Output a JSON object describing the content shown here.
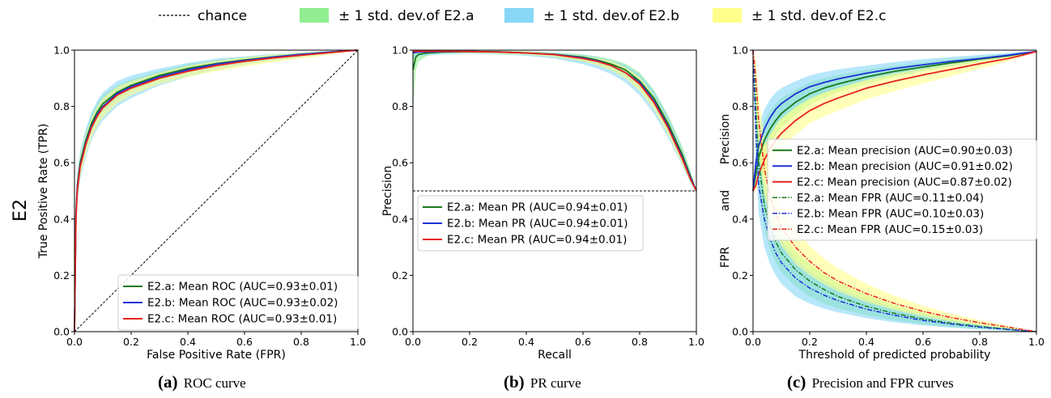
{
  "figure_legend": {
    "chance": "chance",
    "std_a": "± 1 std. dev.of E2.a",
    "std_b": "± 1 std. dev.of E2.b",
    "std_c": "± 1 std. dev.of E2.c"
  },
  "row_label": "E2",
  "colors": {
    "a_line": "#1a7a1a",
    "b_line": "#1f2fd6",
    "c_line": "#e8221e",
    "a_band": "#90ee90",
    "b_band": "#87d7f7",
    "c_band": "#ffff8a",
    "chance": "#000000"
  },
  "captions": {
    "a_letter": "(a)",
    "a_text": "ROC curve",
    "b_letter": "(b)",
    "b_text": "PR curve",
    "c_letter": "(c)",
    "c_text": "Precision and FPR curves"
  },
  "chart_data": [
    {
      "type": "line",
      "xlabel": "False Positive Rate (FPR)",
      "ylabel": "True Positive Rate (TPR)",
      "xlim": [
        0,
        1
      ],
      "ylim": [
        0,
        1
      ],
      "xticks": [
        "0.0",
        "0.2",
        "0.4",
        "0.6",
        "0.8",
        "1.0"
      ],
      "yticks": [
        "0.0",
        "0.2",
        "0.4",
        "0.6",
        "0.8",
        "1.0"
      ],
      "grid": false,
      "legend_position": "bottom-right",
      "legend": [
        "E2.a: Mean ROC (AUC=0.93±0.01)",
        "E2.b: Mean ROC (AUC=0.93±0.02)",
        "E2.c: Mean ROC (AUC=0.93±0.01)"
      ],
      "x": [
        0,
        0.005,
        0.01,
        0.02,
        0.04,
        0.06,
        0.08,
        0.1,
        0.15,
        0.2,
        0.3,
        0.4,
        0.5,
        0.6,
        0.7,
        0.8,
        0.9,
        1.0
      ],
      "series": [
        {
          "values": [
            0,
            0.42,
            0.52,
            0.6,
            0.68,
            0.74,
            0.78,
            0.81,
            0.85,
            0.875,
            0.91,
            0.935,
            0.952,
            0.965,
            0.976,
            0.985,
            0.993,
            1.0
          ]
        },
        {
          "values": [
            0,
            0.41,
            0.51,
            0.59,
            0.67,
            0.73,
            0.77,
            0.8,
            0.845,
            0.87,
            0.905,
            0.93,
            0.95,
            0.963,
            0.975,
            0.985,
            0.993,
            1.0
          ]
        },
        {
          "values": [
            0,
            0.4,
            0.5,
            0.585,
            0.665,
            0.725,
            0.765,
            0.795,
            0.84,
            0.865,
            0.9,
            0.925,
            0.945,
            0.96,
            0.972,
            0.982,
            0.991,
            1.0
          ]
        }
      ],
      "bands": [
        {
          "lower": [
            0,
            0.39,
            0.49,
            0.57,
            0.65,
            0.71,
            0.75,
            0.78,
            0.825,
            0.855,
            0.895,
            0.92,
            0.94,
            0.955,
            0.968,
            0.978,
            0.988,
            1.0
          ],
          "upper": [
            0,
            0.45,
            0.55,
            0.63,
            0.71,
            0.77,
            0.81,
            0.84,
            0.875,
            0.895,
            0.925,
            0.95,
            0.964,
            0.975,
            0.984,
            0.991,
            0.996,
            1.0
          ]
        },
        {
          "lower": [
            0,
            0.36,
            0.46,
            0.54,
            0.62,
            0.68,
            0.72,
            0.75,
            0.8,
            0.83,
            0.875,
            0.905,
            0.93,
            0.948,
            0.962,
            0.975,
            0.986,
            1.0
          ],
          "upper": [
            0,
            0.46,
            0.56,
            0.64,
            0.72,
            0.78,
            0.82,
            0.85,
            0.89,
            0.91,
            0.935,
            0.955,
            0.97,
            0.978,
            0.986,
            0.992,
            0.996,
            1.0
          ]
        },
        {
          "lower": [
            0,
            0.37,
            0.47,
            0.55,
            0.63,
            0.69,
            0.73,
            0.76,
            0.81,
            0.84,
            0.88,
            0.905,
            0.925,
            0.942,
            0.957,
            0.97,
            0.983,
            1.0
          ],
          "upper": [
            0,
            0.43,
            0.53,
            0.62,
            0.7,
            0.76,
            0.8,
            0.83,
            0.87,
            0.89,
            0.92,
            0.945,
            0.962,
            0.974,
            0.984,
            0.991,
            0.996,
            1.0
          ]
        }
      ],
      "reference_line": {
        "x": [
          0,
          1
        ],
        "y": [
          0,
          1
        ]
      }
    },
    {
      "type": "line",
      "xlabel": "Recall",
      "ylabel": "Precision",
      "xlim": [
        0,
        1
      ],
      "ylim": [
        0,
        1
      ],
      "xticks": [
        "0.0",
        "0.2",
        "0.4",
        "0.6",
        "0.8",
        "1.0"
      ],
      "yticks": [
        "0.0",
        "0.2",
        "0.4",
        "0.6",
        "0.8",
        "1.0"
      ],
      "grid": false,
      "legend_position": "center-left",
      "legend": [
        "E2.a: Mean PR (AUC=0.94±0.01)",
        "E2.b: Mean PR (AUC=0.94±0.01)",
        "E2.c: Mean PR (AUC=0.94±0.01)"
      ],
      "x": [
        0,
        0.01,
        0.02,
        0.05,
        0.1,
        0.2,
        0.3,
        0.4,
        0.5,
        0.6,
        0.65,
        0.7,
        0.75,
        0.8,
        0.85,
        0.9,
        0.95,
        0.98,
        1.0
      ],
      "series": [
        {
          "values": [
            0.93,
            0.975,
            0.985,
            0.99,
            0.993,
            0.995,
            0.994,
            0.99,
            0.985,
            0.975,
            0.965,
            0.95,
            0.93,
            0.89,
            0.83,
            0.74,
            0.63,
            0.55,
            0.5
          ]
        },
        {
          "values": [
            0.99,
            0.992,
            0.993,
            0.994,
            0.995,
            0.995,
            0.994,
            0.99,
            0.985,
            0.972,
            0.962,
            0.945,
            0.92,
            0.885,
            0.82,
            0.73,
            0.62,
            0.545,
            0.5
          ]
        },
        {
          "values": [
            0.995,
            0.996,
            0.996,
            0.996,
            0.996,
            0.995,
            0.993,
            0.99,
            0.984,
            0.97,
            0.96,
            0.945,
            0.92,
            0.88,
            0.815,
            0.725,
            0.615,
            0.54,
            0.5
          ]
        }
      ],
      "bands": [
        {
          "lower": [
            0.78,
            0.93,
            0.96,
            0.98,
            0.988,
            0.99,
            0.988,
            0.984,
            0.975,
            0.96,
            0.948,
            0.93,
            0.905,
            0.865,
            0.8,
            0.71,
            0.6,
            0.53,
            0.5
          ],
          "upper": [
            1.0,
            1.0,
            1.0,
            0.998,
            0.998,
            0.998,
            0.998,
            0.996,
            0.992,
            0.985,
            0.978,
            0.968,
            0.952,
            0.92,
            0.86,
            0.77,
            0.66,
            0.57,
            0.5
          ]
        },
        {
          "lower": [
            0.97,
            0.975,
            0.978,
            0.982,
            0.985,
            0.987,
            0.985,
            0.98,
            0.97,
            0.95,
            0.935,
            0.915,
            0.885,
            0.84,
            0.775,
            0.69,
            0.59,
            0.525,
            0.5
          ],
          "upper": [
            1.0,
            1.0,
            1.0,
            0.999,
            0.999,
            0.999,
            0.998,
            0.996,
            0.992,
            0.984,
            0.976,
            0.965,
            0.948,
            0.915,
            0.855,
            0.765,
            0.65,
            0.56,
            0.5
          ]
        },
        {
          "lower": [
            0.985,
            0.988,
            0.99,
            0.99,
            0.99,
            0.99,
            0.988,
            0.984,
            0.976,
            0.96,
            0.946,
            0.928,
            0.9,
            0.855,
            0.79,
            0.7,
            0.595,
            0.53,
            0.5
          ],
          "upper": [
            1.0,
            1.0,
            1.0,
            1.0,
            1.0,
            0.999,
            0.998,
            0.996,
            0.991,
            0.98,
            0.972,
            0.962,
            0.94,
            0.905,
            0.84,
            0.75,
            0.64,
            0.555,
            0.5
          ]
        }
      ],
      "reference_line": {
        "x": [
          0,
          1
        ],
        "y": [
          0.5,
          0.5
        ]
      }
    },
    {
      "type": "line",
      "xlabel": "Threshold of predicted probability",
      "ylabel_parts": [
        "Precision",
        "and",
        "FPR"
      ],
      "xlim": [
        0,
        1
      ],
      "ylim": [
        0,
        1
      ],
      "xticks": [
        "0.0",
        "0.2",
        "0.4",
        "0.6",
        "0.8",
        "1.0"
      ],
      "yticks": [
        "0.0",
        "0.2",
        "0.4",
        "0.6",
        "0.8",
        "1.0"
      ],
      "grid": false,
      "legend_position": "upper-right",
      "legend": [
        "E2.a: Mean precision (AUC=0.90±0.03)",
        "E2.b: Mean precision (AUC=0.91±0.02)",
        "E2.c: Mean precision (AUC=0.87±0.02)",
        "E2.a: Mean FPR (AUC=0.11±0.04)",
        "E2.b: Mean FPR (AUC=0.10±0.03)",
        "E2.c: Mean FPR (AUC=0.15±0.03)"
      ],
      "x": [
        0,
        0.01,
        0.02,
        0.04,
        0.06,
        0.08,
        0.1,
        0.15,
        0.2,
        0.25,
        0.3,
        0.4,
        0.5,
        0.6,
        0.7,
        0.8,
        0.9,
        0.95,
        1.0
      ],
      "series": [
        {
          "style": "solid",
          "values": [
            0.5,
            0.56,
            0.62,
            0.68,
            0.72,
            0.75,
            0.775,
            0.815,
            0.845,
            0.865,
            0.88,
            0.905,
            0.925,
            0.94,
            0.955,
            0.968,
            0.98,
            0.988,
            0.995
          ]
        },
        {
          "style": "solid",
          "values": [
            0.5,
            0.6,
            0.66,
            0.72,
            0.76,
            0.79,
            0.81,
            0.845,
            0.87,
            0.885,
            0.898,
            0.918,
            0.935,
            0.948,
            0.96,
            0.97,
            0.982,
            0.989,
            0.995
          ]
        },
        {
          "style": "solid",
          "values": [
            0.5,
            0.52,
            0.56,
            0.61,
            0.65,
            0.68,
            0.705,
            0.75,
            0.785,
            0.81,
            0.83,
            0.865,
            0.89,
            0.912,
            0.932,
            0.952,
            0.97,
            0.982,
            0.995
          ]
        },
        {
          "style": "dashdot",
          "values": [
            1.0,
            0.8,
            0.6,
            0.45,
            0.37,
            0.32,
            0.28,
            0.22,
            0.18,
            0.15,
            0.125,
            0.09,
            0.065,
            0.045,
            0.03,
            0.018,
            0.009,
            0.004,
            0.0
          ]
        },
        {
          "style": "dashdot",
          "values": [
            1.0,
            0.7,
            0.52,
            0.4,
            0.33,
            0.28,
            0.245,
            0.19,
            0.155,
            0.13,
            0.11,
            0.08,
            0.058,
            0.04,
            0.027,
            0.016,
            0.008,
            0.004,
            0.0
          ]
        },
        {
          "style": "dashdot",
          "values": [
            1.0,
            0.9,
            0.75,
            0.58,
            0.48,
            0.42,
            0.37,
            0.3,
            0.25,
            0.21,
            0.18,
            0.135,
            0.1,
            0.072,
            0.05,
            0.032,
            0.016,
            0.008,
            0.0
          ]
        }
      ],
      "bands": [
        {
          "lower": [
            0.5,
            0.52,
            0.56,
            0.62,
            0.665,
            0.7,
            0.725,
            0.77,
            0.805,
            0.83,
            0.85,
            0.88,
            0.905,
            0.925,
            0.942,
            0.958,
            0.974,
            0.984,
            0.995
          ],
          "upper": [
            0.5,
            0.62,
            0.69,
            0.75,
            0.785,
            0.81,
            0.83,
            0.86,
            0.885,
            0.9,
            0.912,
            0.93,
            0.945,
            0.957,
            0.968,
            0.978,
            0.987,
            0.992,
            0.995
          ]
        },
        {
          "lower": [
            0.5,
            0.55,
            0.6,
            0.66,
            0.7,
            0.735,
            0.76,
            0.8,
            0.83,
            0.85,
            0.865,
            0.89,
            0.91,
            0.928,
            0.945,
            0.96,
            0.976,
            0.985,
            0.995
          ],
          "upper": [
            0.5,
            0.66,
            0.73,
            0.79,
            0.825,
            0.85,
            0.865,
            0.89,
            0.91,
            0.922,
            0.932,
            0.945,
            0.958,
            0.968,
            0.976,
            0.983,
            0.99,
            0.994,
            0.995
          ]
        },
        {
          "lower": [
            0.5,
            0.5,
            0.52,
            0.56,
            0.6,
            0.63,
            0.655,
            0.7,
            0.74,
            0.765,
            0.785,
            0.825,
            0.855,
            0.882,
            0.908,
            0.934,
            0.96,
            0.976,
            0.995
          ],
          "upper": [
            0.5,
            0.56,
            0.61,
            0.66,
            0.7,
            0.73,
            0.755,
            0.795,
            0.825,
            0.848,
            0.866,
            0.895,
            0.918,
            0.935,
            0.952,
            0.967,
            0.98,
            0.988,
            0.995
          ]
        },
        {
          "lower": [
            1.0,
            0.72,
            0.5,
            0.36,
            0.29,
            0.245,
            0.21,
            0.16,
            0.125,
            0.1,
            0.083,
            0.058,
            0.04,
            0.027,
            0.017,
            0.01,
            0.004,
            0.002,
            0.0
          ],
          "upper": [
            1.0,
            0.88,
            0.7,
            0.55,
            0.46,
            0.4,
            0.355,
            0.285,
            0.24,
            0.205,
            0.175,
            0.13,
            0.095,
            0.068,
            0.046,
            0.028,
            0.014,
            0.006,
            0.0
          ]
        },
        {
          "lower": [
            1.0,
            0.6,
            0.42,
            0.3,
            0.24,
            0.2,
            0.17,
            0.125,
            0.1,
            0.082,
            0.068,
            0.048,
            0.033,
            0.022,
            0.014,
            0.008,
            0.003,
            0.001,
            0.0
          ],
          "upper": [
            1.0,
            0.8,
            0.63,
            0.5,
            0.42,
            0.365,
            0.325,
            0.26,
            0.215,
            0.182,
            0.155,
            0.115,
            0.085,
            0.06,
            0.041,
            0.025,
            0.013,
            0.006,
            0.0
          ]
        },
        {
          "lower": [
            1.0,
            0.84,
            0.66,
            0.49,
            0.4,
            0.345,
            0.305,
            0.24,
            0.2,
            0.168,
            0.143,
            0.105,
            0.077,
            0.054,
            0.036,
            0.022,
            0.011,
            0.005,
            0.0
          ],
          "upper": [
            1.0,
            0.96,
            0.84,
            0.68,
            0.57,
            0.5,
            0.44,
            0.365,
            0.305,
            0.26,
            0.225,
            0.17,
            0.127,
            0.092,
            0.064,
            0.041,
            0.021,
            0.01,
            0.0
          ]
        }
      ]
    }
  ]
}
